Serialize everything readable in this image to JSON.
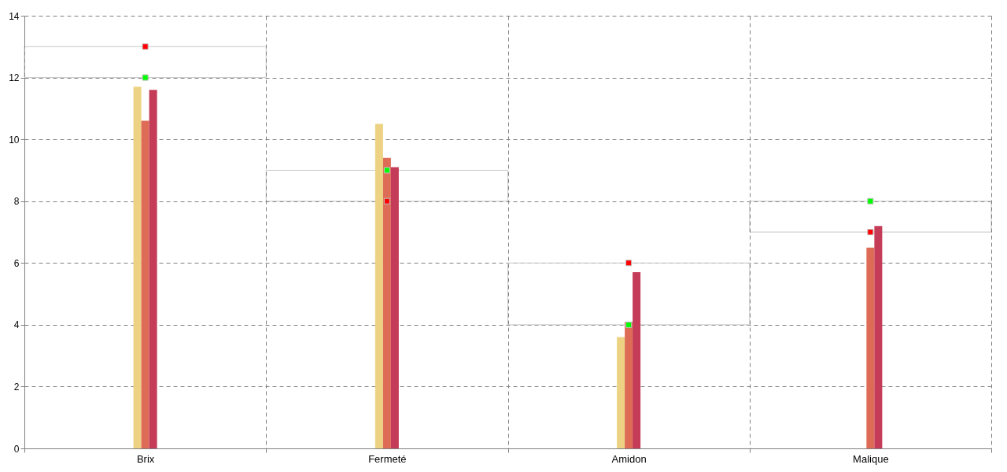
{
  "chart_data": {
    "type": "bar",
    "categories": [
      "Brix",
      "Fermeté",
      "Amidon",
      "Malique"
    ],
    "series": [
      {
        "color": "#edd283",
        "values": [
          11.7,
          10.5,
          3.6,
          0
        ]
      },
      {
        "color": "#dd6b55",
        "values": [
          10.6,
          9.4,
          4.1,
          6.5
        ]
      },
      {
        "color": "#c43c57",
        "values": [
          11.6,
          9.1,
          5.7,
          7.2
        ]
      },
      {
        "type": "scatter",
        "color": "#00ff00",
        "x": [
          "Brix",
          "Fermeté",
          "Amidon",
          "Malique"
        ],
        "values": [
          12,
          9,
          4,
          8
        ]
      },
      {
        "type": "scatter",
        "color": "#ff0000",
        "x": [
          "Brix",
          "Fermeté",
          "Amidon",
          "Malique"
        ],
        "values": [
          13,
          8,
          6,
          7
        ]
      }
    ],
    "ylim": [
      0,
      14
    ],
    "yticks": [
      0,
      2,
      4,
      6,
      8,
      10,
      12,
      14
    ],
    "grid": true,
    "marker": "square"
  }
}
